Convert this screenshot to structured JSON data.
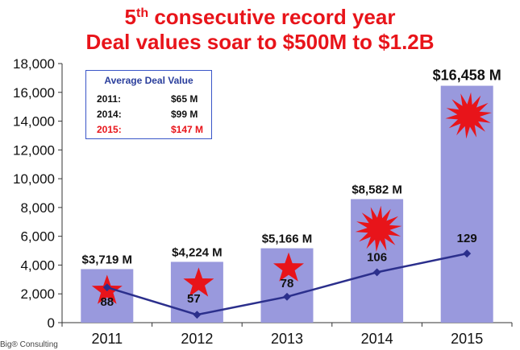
{
  "header": {
    "title_prefix": "5",
    "title_sup": "th",
    "title_rest": " consecutive record year",
    "subtitle": "Deal values soar to $500M to $1.2B"
  },
  "footer": {
    "text": "Big® Consulting"
  },
  "legend_box": {
    "title": "Average Deal Value",
    "rows": [
      {
        "year": "2011:",
        "value": "$65 M",
        "highlight": false
      },
      {
        "year": "2014:",
        "value": "$99 M",
        "highlight": false
      },
      {
        "year": "2015:",
        "value": "$147 M",
        "highlight": true
      }
    ]
  },
  "colors": {
    "title": "#e8141a",
    "bar": "#9999dd",
    "line": "#2b2f8c",
    "star": "#e8141a",
    "box_border": "#3a56c8",
    "box_title": "#2a3e9c"
  },
  "chart_data": {
    "type": "bar",
    "title": "",
    "xlabel": "",
    "ylabel": "",
    "ylim": [
      0,
      18000
    ],
    "yticks": [
      0,
      2000,
      4000,
      6000,
      8000,
      10000,
      12000,
      14000,
      16000,
      18000
    ],
    "ytick_labels": [
      "0",
      "2,000",
      "4,000",
      "6,000",
      "8,000",
      "10,000",
      "12,000",
      "14,000",
      "16,000",
      "18,000"
    ],
    "categories": [
      "2011",
      "2012",
      "2013",
      "2014",
      "2015"
    ],
    "values": [
      3719,
      4224,
      5166,
      8582,
      16458
    ],
    "bar_labels": [
      "$3,719 M",
      "$4,224 M",
      "$5,166 M",
      "$8,582 M",
      "$16,458 M"
    ],
    "line_series": {
      "values": [
        88,
        57,
        78,
        106,
        129
      ],
      "labels": [
        "88",
        "57",
        "78",
        "106",
        "129"
      ]
    },
    "markers": [
      "star",
      "star",
      "star",
      "burst",
      "burst"
    ],
    "grid": false,
    "legend": "none"
  }
}
